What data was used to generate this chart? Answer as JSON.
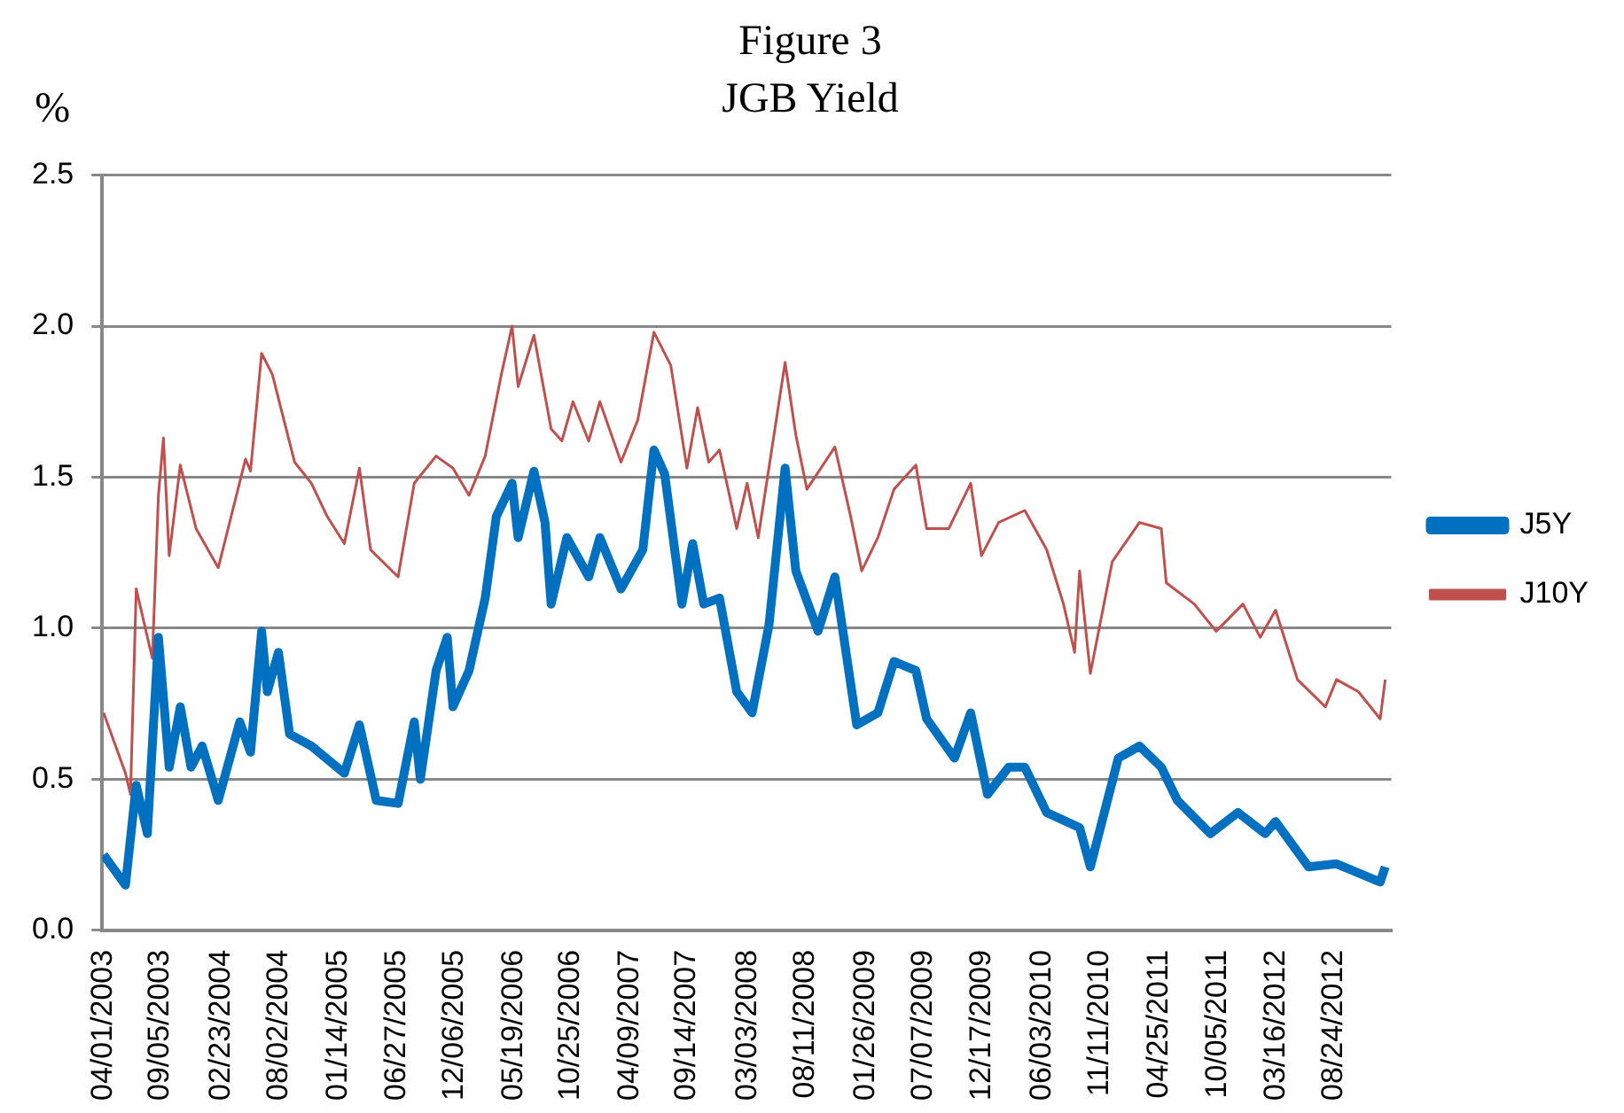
{
  "chart_data": {
    "type": "line",
    "title": [
      "Figure 3",
      "JGB Yield"
    ],
    "ylabel": "%",
    "xlim": [
      "2003-03-28",
      "2013-02-01"
    ],
    "xticks": [
      {
        "value": "2003-04-01",
        "label": "04/01/2003"
      },
      {
        "value": "2003-09-05",
        "label": "09/05/2003"
      },
      {
        "value": "2004-02-23",
        "label": "02/23/2004"
      },
      {
        "value": "2004-08-02",
        "label": "08/02/2004"
      },
      {
        "value": "2005-01-14",
        "label": "01/14/2005"
      },
      {
        "value": "2005-06-27",
        "label": "06/27/2005"
      },
      {
        "value": "2005-12-06",
        "label": "12/06/2005"
      },
      {
        "value": "2006-05-19",
        "label": "05/19/2006"
      },
      {
        "value": "2006-10-25",
        "label": "10/25/2006"
      },
      {
        "value": "2007-04-09",
        "label": "04/09/2007"
      },
      {
        "value": "2007-09-14",
        "label": "09/14/2007"
      },
      {
        "value": "2008-03-03",
        "label": "03/03/2008"
      },
      {
        "value": "2008-08-11",
        "label": "08/11/2008"
      },
      {
        "value": "2009-01-26",
        "label": "01/26/2009"
      },
      {
        "value": "2009-07-07",
        "label": "07/07/2009"
      },
      {
        "value": "2009-12-17",
        "label": "12/17/2009"
      },
      {
        "value": "2010-06-03",
        "label": "06/03/2010"
      },
      {
        "value": "2010-11-11",
        "label": "11/11/2010"
      },
      {
        "value": "2011-04-25",
        "label": "04/25/2011"
      },
      {
        "value": "2011-10-05",
        "label": "10/05/2011"
      },
      {
        "value": "2012-03-16",
        "label": "03/16/2012"
      },
      {
        "value": "2012-08-24",
        "label": "08/24/2012"
      }
    ],
    "ylim": [
      0,
      2.5
    ],
    "yticks": [
      {
        "value": 0,
        "label": "0.0"
      },
      {
        "value": 0.5,
        "label": "0.5"
      },
      {
        "value": 1,
        "label": "1.0"
      },
      {
        "value": 1.5,
        "label": "1.5"
      },
      {
        "value": 2,
        "label": "2.0"
      },
      {
        "value": 2.5,
        "label": "2.5"
      }
    ],
    "grid": "y",
    "legend": "right",
    "marker": "none",
    "series": [
      {
        "name": "J5Y",
        "color": "#0070c0",
        "x": [
          "2003-04-01",
          "2003-06-01",
          "2003-07-01",
          "2003-08-01",
          "2003-09-01",
          "2003-10-01",
          "2003-11-01",
          "2003-12-01",
          "2004-01-01",
          "2004-02-15",
          "2004-04-15",
          "2004-05-15",
          "2004-06-15",
          "2004-07-01",
          "2004-08-01",
          "2004-09-01",
          "2004-11-01",
          "2005-02-01",
          "2005-03-15",
          "2005-05-01",
          "2005-07-01",
          "2005-08-15",
          "2005-09-01",
          "2005-10-15",
          "2005-11-15",
          "2005-12-01",
          "2006-01-15",
          "2006-03-01",
          "2006-04-01",
          "2006-05-15",
          "2006-06-01",
          "2006-07-15",
          "2006-08-15",
          "2006-09-01",
          "2006-10-15",
          "2006-12-15",
          "2007-01-15",
          "2007-03-15",
          "2007-05-15",
          "2007-06-15",
          "2007-07-15",
          "2007-09-01",
          "2007-10-01",
          "2007-11-01",
          "2007-12-15",
          "2008-02-01",
          "2008-03-15",
          "2008-05-01",
          "2008-06-15",
          "2008-07-15",
          "2008-09-15",
          "2008-11-01",
          "2009-01-01",
          "2009-03-01",
          "2009-04-15",
          "2009-06-15",
          "2009-07-15",
          "2009-10-01",
          "2009-11-15",
          "2010-01-01",
          "2010-03-01",
          "2010-04-15",
          "2010-06-15",
          "2010-09-15",
          "2010-10-15",
          "2011-01-01",
          "2011-03-01",
          "2011-05-01",
          "2011-06-15",
          "2011-09-15",
          "2011-12-01",
          "2012-02-15",
          "2012-03-15",
          "2012-06-15",
          "2012-09-01",
          "2013-01-01",
          "2013-01-15"
        ],
        "values": [
          0.25,
          0.15,
          0.48,
          0.32,
          0.97,
          0.54,
          0.74,
          0.54,
          0.61,
          0.43,
          0.69,
          0.59,
          0.99,
          0.79,
          0.92,
          0.65,
          0.61,
          0.52,
          0.68,
          0.43,
          0.42,
          0.69,
          0.5,
          0.86,
          0.97,
          0.74,
          0.86,
          1.1,
          1.37,
          1.48,
          1.3,
          1.52,
          1.35,
          1.08,
          1.3,
          1.17,
          1.3,
          1.13,
          1.26,
          1.59,
          1.51,
          1.08,
          1.28,
          1.08,
          1.1,
          0.79,
          0.72,
          1.01,
          1.53,
          1.19,
          0.99,
          1.17,
          0.68,
          0.72,
          0.89,
          0.86,
          0.7,
          0.57,
          0.72,
          0.45,
          0.54,
          0.54,
          0.39,
          0.34,
          0.21,
          0.57,
          0.61,
          0.54,
          0.43,
          0.32,
          0.39,
          0.32,
          0.36,
          0.21,
          0.22,
          0.16,
          0.21
        ]
      },
      {
        "name": "J10Y",
        "color": "#c0504d",
        "x": [
          "2003-04-01",
          "2003-06-01",
          "2003-06-15",
          "2003-07-01",
          "2003-08-15",
          "2003-09-01",
          "2003-09-15",
          "2003-10-01",
          "2003-11-01",
          "2003-12-15",
          "2004-02-15",
          "2004-05-01",
          "2004-05-15",
          "2004-06-15",
          "2004-07-15",
          "2004-09-15",
          "2004-11-01",
          "2004-12-15",
          "2005-02-01",
          "2005-03-15",
          "2005-04-15",
          "2005-07-01",
          "2005-08-15",
          "2005-10-15",
          "2005-12-01",
          "2006-01-15",
          "2006-03-01",
          "2006-04-15",
          "2006-05-15",
          "2006-06-01",
          "2006-07-15",
          "2006-09-01",
          "2006-10-01",
          "2006-11-01",
          "2006-12-15",
          "2007-01-15",
          "2007-03-15",
          "2007-05-01",
          "2007-06-15",
          "2007-08-01",
          "2007-09-15",
          "2007-10-15",
          "2007-11-15",
          "2007-12-15",
          "2008-02-01",
          "2008-03-01",
          "2008-04-01",
          "2008-05-15",
          "2008-06-15",
          "2008-07-15",
          "2008-08-15",
          "2008-11-01",
          "2008-12-15",
          "2009-01-15",
          "2009-03-01",
          "2009-04-15",
          "2009-06-15",
          "2009-07-15",
          "2009-09-15",
          "2009-11-15",
          "2009-12-15",
          "2010-02-01",
          "2010-04-15",
          "2010-06-15",
          "2010-08-01",
          "2010-09-01",
          "2010-09-15",
          "2010-10-15",
          "2010-12-15",
          "2011-03-01",
          "2011-05-01",
          "2011-05-15",
          "2011-08-01",
          "2011-10-01",
          "2011-12-15",
          "2012-02-01",
          "2012-03-15",
          "2012-05-15",
          "2012-08-01",
          "2012-09-01",
          "2012-11-01",
          "2013-01-01",
          "2013-01-15"
        ],
        "values": [
          0.72,
          0.52,
          0.45,
          1.13,
          0.9,
          1.44,
          1.63,
          1.24,
          1.54,
          1.33,
          1.2,
          1.56,
          1.52,
          1.91,
          1.84,
          1.55,
          1.48,
          1.37,
          1.28,
          1.53,
          1.26,
          1.17,
          1.48,
          1.57,
          1.53,
          1.44,
          1.57,
          1.84,
          2.0,
          1.8,
          1.97,
          1.66,
          1.62,
          1.75,
          1.62,
          1.75,
          1.55,
          1.69,
          1.98,
          1.87,
          1.53,
          1.73,
          1.55,
          1.59,
          1.33,
          1.48,
          1.3,
          1.64,
          1.88,
          1.64,
          1.46,
          1.6,
          1.37,
          1.19,
          1.3,
          1.46,
          1.54,
          1.33,
          1.33,
          1.48,
          1.24,
          1.35,
          1.39,
          1.26,
          1.08,
          0.92,
          1.19,
          0.85,
          1.22,
          1.35,
          1.33,
          1.15,
          1.08,
          0.99,
          1.08,
          0.97,
          1.06,
          0.83,
          0.74,
          0.83,
          0.79,
          0.7,
          0.83
        ]
      }
    ]
  }
}
